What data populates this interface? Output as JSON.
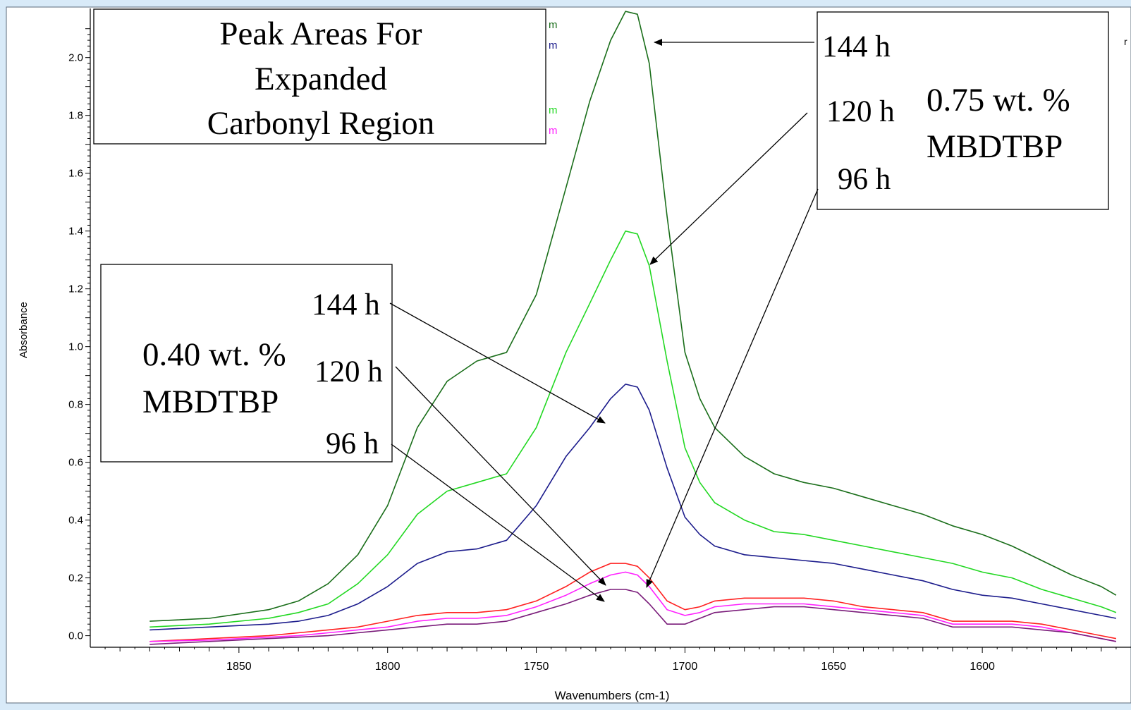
{
  "chart_data": {
    "type": "line",
    "title": "",
    "xlabel": "Wavenumbers (cm-1)",
    "ylabel": "Absorbance",
    "xlim": [
      1900,
      1550
    ],
    "ylim": [
      -0.04,
      2.17
    ],
    "x_reversed": true,
    "x_ticks": [
      1850,
      1800,
      1750,
      1700,
      1650,
      1600
    ],
    "y_ticks": [
      0.0,
      0.2,
      0.4,
      0.6,
      0.8,
      1.0,
      1.2,
      1.4,
      1.6,
      1.8,
      2.0
    ],
    "x_tick_labels": [
      "1850",
      "1800",
      "1750",
      "1700",
      "1650",
      "1600"
    ],
    "y_tick_labels": [
      "0.0",
      "0.2",
      "0.4",
      "0.6",
      "0.8",
      "1.0",
      "1.2",
      "1.4",
      "1.6",
      "1.8",
      "2.0"
    ],
    "grid": false,
    "series": [
      {
        "color": "#1a6e1a",
        "points": [
          [
            1880,
            0.05
          ],
          [
            1860,
            0.06
          ],
          [
            1840,
            0.09
          ],
          [
            1830,
            0.12
          ],
          [
            1820,
            0.18
          ],
          [
            1810,
            0.28
          ],
          [
            1800,
            0.45
          ],
          [
            1790,
            0.72
          ],
          [
            1780,
            0.88
          ],
          [
            1770,
            0.95
          ],
          [
            1760,
            0.98
          ],
          [
            1750,
            1.18
          ],
          [
            1740,
            1.55
          ],
          [
            1732,
            1.85
          ],
          [
            1725,
            2.06
          ],
          [
            1720,
            2.16
          ],
          [
            1716,
            2.15
          ],
          [
            1712,
            1.98
          ],
          [
            1706,
            1.45
          ],
          [
            1700,
            0.98
          ],
          [
            1695,
            0.82
          ],
          [
            1690,
            0.72
          ],
          [
            1680,
            0.62
          ],
          [
            1670,
            0.56
          ],
          [
            1660,
            0.53
          ],
          [
            1650,
            0.51
          ],
          [
            1640,
            0.48
          ],
          [
            1630,
            0.45
          ],
          [
            1620,
            0.42
          ],
          [
            1610,
            0.38
          ],
          [
            1600,
            0.35
          ],
          [
            1590,
            0.31
          ],
          [
            1580,
            0.26
          ],
          [
            1570,
            0.21
          ],
          [
            1560,
            0.17
          ],
          [
            1555,
            0.14
          ]
        ]
      },
      {
        "color": "#22d822",
        "points": [
          [
            1880,
            0.03
          ],
          [
            1860,
            0.04
          ],
          [
            1840,
            0.06
          ],
          [
            1830,
            0.08
          ],
          [
            1820,
            0.11
          ],
          [
            1810,
            0.18
          ],
          [
            1800,
            0.28
          ],
          [
            1790,
            0.42
          ],
          [
            1780,
            0.5
          ],
          [
            1770,
            0.53
          ],
          [
            1760,
            0.56
          ],
          [
            1750,
            0.72
          ],
          [
            1740,
            0.98
          ],
          [
            1732,
            1.15
          ],
          [
            1725,
            1.3
          ],
          [
            1720,
            1.4
          ],
          [
            1716,
            1.39
          ],
          [
            1712,
            1.28
          ],
          [
            1706,
            0.95
          ],
          [
            1700,
            0.65
          ],
          [
            1695,
            0.53
          ],
          [
            1690,
            0.46
          ],
          [
            1680,
            0.4
          ],
          [
            1670,
            0.36
          ],
          [
            1660,
            0.35
          ],
          [
            1650,
            0.33
          ],
          [
            1640,
            0.31
          ],
          [
            1630,
            0.29
          ],
          [
            1620,
            0.27
          ],
          [
            1610,
            0.25
          ],
          [
            1600,
            0.22
          ],
          [
            1590,
            0.2
          ],
          [
            1580,
            0.16
          ],
          [
            1570,
            0.13
          ],
          [
            1560,
            0.1
          ],
          [
            1555,
            0.08
          ]
        ]
      },
      {
        "color": "#1c1c8c",
        "points": [
          [
            1880,
            0.02
          ],
          [
            1860,
            0.03
          ],
          [
            1840,
            0.04
          ],
          [
            1830,
            0.05
          ],
          [
            1820,
            0.07
          ],
          [
            1810,
            0.11
          ],
          [
            1800,
            0.17
          ],
          [
            1790,
            0.25
          ],
          [
            1780,
            0.29
          ],
          [
            1770,
            0.3
          ],
          [
            1760,
            0.33
          ],
          [
            1750,
            0.45
          ],
          [
            1740,
            0.62
          ],
          [
            1732,
            0.72
          ],
          [
            1725,
            0.82
          ],
          [
            1720,
            0.87
          ],
          [
            1716,
            0.86
          ],
          [
            1712,
            0.78
          ],
          [
            1706,
            0.58
          ],
          [
            1700,
            0.41
          ],
          [
            1695,
            0.35
          ],
          [
            1690,
            0.31
          ],
          [
            1680,
            0.28
          ],
          [
            1670,
            0.27
          ],
          [
            1660,
            0.26
          ],
          [
            1650,
            0.25
          ],
          [
            1640,
            0.23
          ],
          [
            1630,
            0.21
          ],
          [
            1620,
            0.19
          ],
          [
            1610,
            0.16
          ],
          [
            1600,
            0.14
          ],
          [
            1590,
            0.13
          ],
          [
            1580,
            0.11
          ],
          [
            1570,
            0.09
          ],
          [
            1560,
            0.07
          ],
          [
            1555,
            0.06
          ]
        ]
      },
      {
        "color": "#ff2020",
        "points": [
          [
            1880,
            -0.02
          ],
          [
            1860,
            -0.01
          ],
          [
            1840,
            0.0
          ],
          [
            1830,
            0.01
          ],
          [
            1820,
            0.02
          ],
          [
            1810,
            0.03
          ],
          [
            1800,
            0.05
          ],
          [
            1790,
            0.07
          ],
          [
            1780,
            0.08
          ],
          [
            1770,
            0.08
          ],
          [
            1760,
            0.09
          ],
          [
            1750,
            0.12
          ],
          [
            1740,
            0.17
          ],
          [
            1732,
            0.22
          ],
          [
            1725,
            0.25
          ],
          [
            1720,
            0.25
          ],
          [
            1716,
            0.24
          ],
          [
            1712,
            0.2
          ],
          [
            1706,
            0.12
          ],
          [
            1700,
            0.09
          ],
          [
            1695,
            0.1
          ],
          [
            1690,
            0.12
          ],
          [
            1680,
            0.13
          ],
          [
            1670,
            0.13
          ],
          [
            1660,
            0.13
          ],
          [
            1650,
            0.12
          ],
          [
            1640,
            0.1
          ],
          [
            1630,
            0.09
          ],
          [
            1620,
            0.08
          ],
          [
            1610,
            0.05
          ],
          [
            1600,
            0.05
          ],
          [
            1590,
            0.05
          ],
          [
            1580,
            0.04
          ],
          [
            1570,
            0.02
          ],
          [
            1560,
            0.0
          ],
          [
            1555,
            -0.01
          ]
        ]
      },
      {
        "color": "#ff20ff",
        "points": [
          [
            1880,
            -0.02
          ],
          [
            1860,
            -0.015
          ],
          [
            1840,
            -0.005
          ],
          [
            1830,
            0.0
          ],
          [
            1820,
            0.01
          ],
          [
            1810,
            0.02
          ],
          [
            1800,
            0.03
          ],
          [
            1790,
            0.05
          ],
          [
            1780,
            0.06
          ],
          [
            1770,
            0.06
          ],
          [
            1760,
            0.07
          ],
          [
            1750,
            0.1
          ],
          [
            1740,
            0.14
          ],
          [
            1732,
            0.18
          ],
          [
            1725,
            0.21
          ],
          [
            1720,
            0.22
          ],
          [
            1716,
            0.21
          ],
          [
            1712,
            0.17
          ],
          [
            1706,
            0.09
          ],
          [
            1700,
            0.07
          ],
          [
            1695,
            0.08
          ],
          [
            1690,
            0.1
          ],
          [
            1680,
            0.11
          ],
          [
            1670,
            0.11
          ],
          [
            1660,
            0.11
          ],
          [
            1650,
            0.1
          ],
          [
            1640,
            0.09
          ],
          [
            1630,
            0.08
          ],
          [
            1620,
            0.07
          ],
          [
            1610,
            0.04
          ],
          [
            1600,
            0.04
          ],
          [
            1590,
            0.04
          ],
          [
            1580,
            0.03
          ],
          [
            1570,
            0.01
          ],
          [
            1560,
            -0.01
          ],
          [
            1555,
            -0.02
          ]
        ]
      },
      {
        "color": "#7a1c7a",
        "points": [
          [
            1880,
            -0.03
          ],
          [
            1860,
            -0.02
          ],
          [
            1840,
            -0.01
          ],
          [
            1830,
            -0.005
          ],
          [
            1820,
            0.0
          ],
          [
            1810,
            0.01
          ],
          [
            1800,
            0.02
          ],
          [
            1790,
            0.03
          ],
          [
            1780,
            0.04
          ],
          [
            1770,
            0.04
          ],
          [
            1760,
            0.05
          ],
          [
            1750,
            0.08
          ],
          [
            1740,
            0.11
          ],
          [
            1732,
            0.14
          ],
          [
            1725,
            0.16
          ],
          [
            1720,
            0.16
          ],
          [
            1716,
            0.15
          ],
          [
            1712,
            0.11
          ],
          [
            1706,
            0.04
          ],
          [
            1700,
            0.04
          ],
          [
            1695,
            0.06
          ],
          [
            1690,
            0.08
          ],
          [
            1680,
            0.09
          ],
          [
            1670,
            0.1
          ],
          [
            1660,
            0.1
          ],
          [
            1650,
            0.09
          ],
          [
            1640,
            0.08
          ],
          [
            1630,
            0.07
          ],
          [
            1620,
            0.06
          ],
          [
            1610,
            0.03
          ],
          [
            1600,
            0.03
          ],
          [
            1590,
            0.03
          ],
          [
            1580,
            0.02
          ],
          [
            1570,
            0.01
          ],
          [
            1560,
            -0.01
          ],
          [
            1555,
            -0.02
          ]
        ]
      }
    ],
    "legend_fragments": [
      {
        "text": "m",
        "color": "#1a6e1a"
      },
      {
        "text": "m",
        "color": "#1c1c8c"
      },
      {
        "text": "m",
        "color": "#22d822"
      },
      {
        "text": "m",
        "color": "#ff20ff"
      }
    ],
    "edge_fragment": "r",
    "annotations": {
      "title_box": [
        "Peak Areas For",
        "Expanded",
        "Carbonyl Region"
      ],
      "box_075": {
        "label": "0.75 wt. %",
        "label2": "MBDTBP",
        "times": [
          "144 h",
          "120 h",
          "96 h"
        ]
      },
      "box_040": {
        "label": "0.40 wt. %",
        "label2": "MBDTBP",
        "times": [
          "144 h",
          "120 h",
          "96 h"
        ]
      }
    }
  }
}
